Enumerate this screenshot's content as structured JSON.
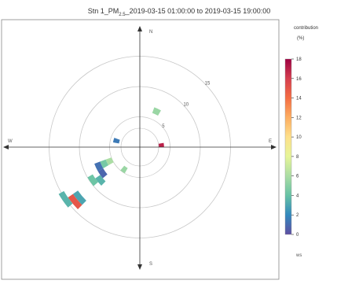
{
  "figure": {
    "title_prefix": "Stn 1_PM",
    "title_sub": "2.5",
    "title_suffix": "_2019-03-15 01:00:00 to 2019-03-15 19:00:00"
  },
  "chart_data": {
    "type": "polar",
    "title": "Stn 1_PM2.5_2019-03-15 01:00:00 to 2019-03-15 19:00:00",
    "direction_labels": {
      "N": "N",
      "E": "E",
      "S": "S",
      "W": "W"
    },
    "radial_labels": [
      {
        "ws": 5,
        "label": "5"
      },
      {
        "ws": 10,
        "label": "10"
      },
      {
        "ws": 15,
        "label": "15"
      }
    ],
    "radial_range": [
      0,
      16
    ],
    "segments": [
      {
        "theta_start": 20,
        "theta_end": 30,
        "ws_inner": 6.0,
        "ws_outer": 7.0,
        "value": 5.5
      },
      {
        "theta_start": 80,
        "theta_end": 90,
        "ws_inner": 2.6,
        "ws_outer": 4.0,
        "value": 17
      },
      {
        "theta_start": 210,
        "theta_end": 220,
        "ws_inner": 4.0,
        "ws_outer": 5.0,
        "value": 5.5
      },
      {
        "theta_start": 240,
        "theta_end": 250,
        "ws_inner": 5.0,
        "ws_outer": 6.0,
        "value": 6
      },
      {
        "theta_start": 240,
        "theta_end": 250,
        "ws_inner": 6.0,
        "ws_outer": 7.0,
        "value": 4.5
      },
      {
        "theta_start": 240,
        "theta_end": 250,
        "ws_inner": 7.0,
        "ws_outer": 8.0,
        "value": 1.2
      },
      {
        "theta_start": 230,
        "theta_end": 240,
        "ws_inner": 7.0,
        "ws_outer": 8.0,
        "value": 0.8
      },
      {
        "theta_start": 225,
        "theta_end": 235,
        "ws_inner": 8.0,
        "ws_outer": 9.0,
        "value": 3.5
      },
      {
        "theta_start": 230,
        "theta_end": 240,
        "ws_inner": 9.0,
        "ws_outer": 10.0,
        "value": 4.2
      },
      {
        "theta_start": 280,
        "theta_end": 290,
        "ws_inner": 3.5,
        "ws_outer": 4.5,
        "value": 1.5
      },
      {
        "theta_start": 225,
        "theta_end": 235,
        "ws_inner": 12.5,
        "ws_outer": 13.5,
        "value": 3.0
      },
      {
        "theta_start": 225,
        "theta_end": 235,
        "ws_inner": 13.5,
        "ws_outer": 14.5,
        "value": 15
      },
      {
        "theta_start": 230,
        "theta_end": 240,
        "ws_inner": 14.5,
        "ws_outer": 15.5,
        "value": 3.5
      }
    ],
    "legend": {
      "title": "contribution",
      "unit": "(%)",
      "range": [
        0,
        18
      ],
      "ticks": [
        "18",
        "16",
        "14",
        "12",
        "10",
        "8",
        "6",
        "4",
        "2",
        "0"
      ],
      "colors": [
        "#5e4fa2",
        "#3288bd",
        "#66c2a5",
        "#abdda4",
        "#e6f598",
        "#fee08b",
        "#fdae61",
        "#f46d43",
        "#d53e4f",
        "#9e0142"
      ],
      "footer": "ws"
    }
  }
}
